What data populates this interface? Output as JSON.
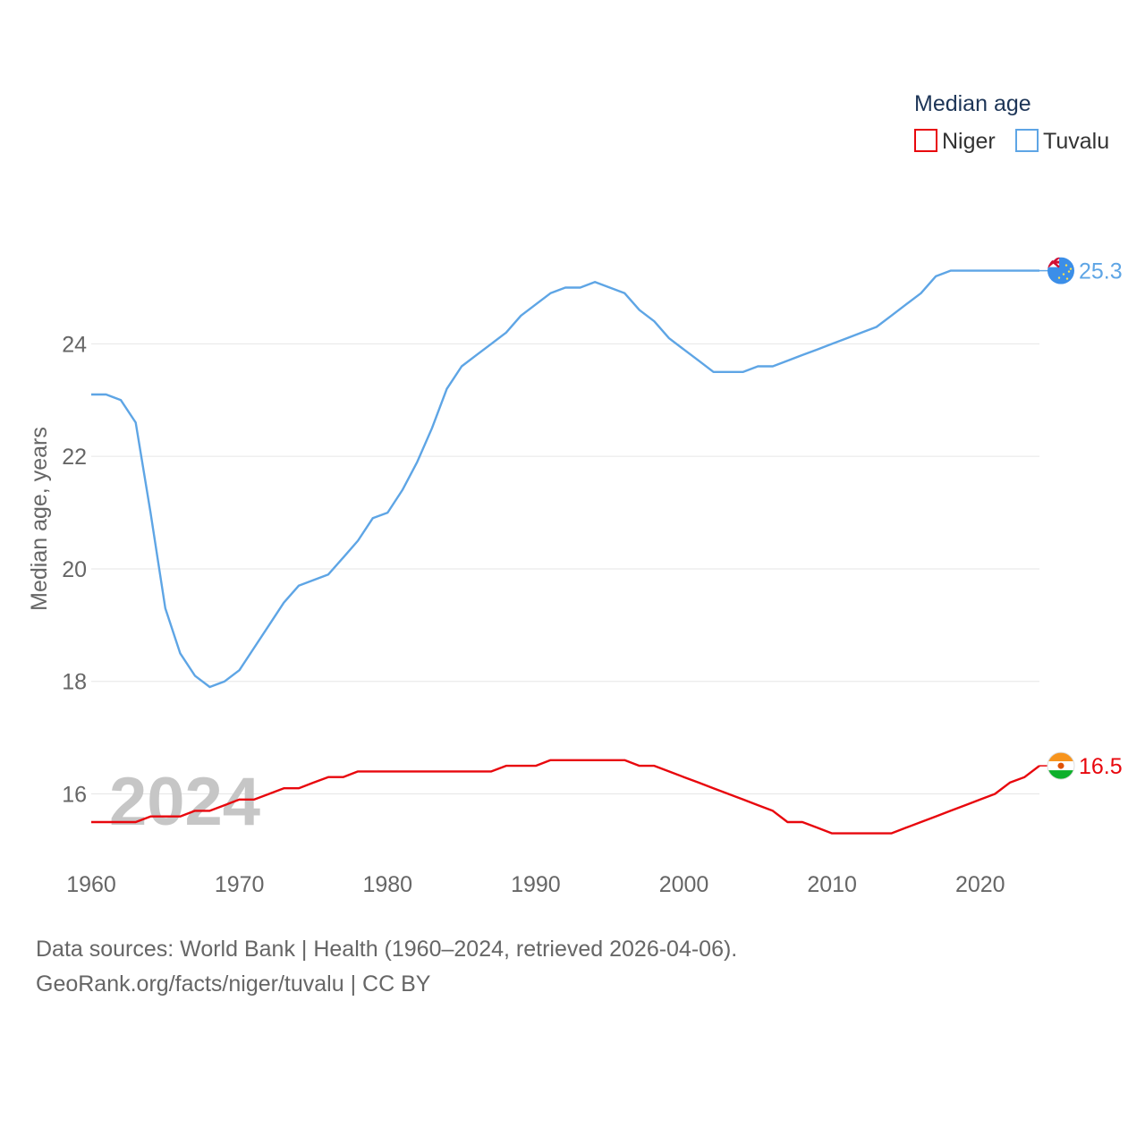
{
  "chart_data": {
    "type": "line",
    "legend_title": "Median age",
    "legend_position": "top-right",
    "ylabel": "Median age, years",
    "xlabel": "",
    "xlim": [
      1960,
      2024
    ],
    "ylim": [
      14.8,
      26.2
    ],
    "xticks": [
      1960,
      1970,
      1980,
      1990,
      2000,
      2010,
      2020
    ],
    "yticks": [
      16,
      18,
      20,
      22,
      24
    ],
    "grid": true,
    "year_label": "2024",
    "x": [
      1960,
      1961,
      1962,
      1963,
      1964,
      1965,
      1966,
      1967,
      1968,
      1969,
      1970,
      1971,
      1972,
      1973,
      1974,
      1975,
      1976,
      1977,
      1978,
      1979,
      1980,
      1981,
      1982,
      1983,
      1984,
      1985,
      1986,
      1987,
      1988,
      1989,
      1990,
      1991,
      1992,
      1993,
      1994,
      1995,
      1996,
      1997,
      1998,
      1999,
      2000,
      2001,
      2002,
      2003,
      2004,
      2005,
      2006,
      2007,
      2008,
      2009,
      2010,
      2011,
      2012,
      2013,
      2014,
      2015,
      2016,
      2017,
      2018,
      2019,
      2020,
      2021,
      2022,
      2023,
      2024
    ],
    "series": [
      {
        "name": "Niger",
        "color": "#e8070d",
        "end_label": "16.5",
        "flag": "niger-flag-icon",
        "values": [
          15.5,
          15.5,
          15.5,
          15.5,
          15.6,
          15.6,
          15.6,
          15.7,
          15.7,
          15.8,
          15.9,
          15.9,
          16.0,
          16.1,
          16.1,
          16.2,
          16.3,
          16.3,
          16.4,
          16.4,
          16.4,
          16.4,
          16.4,
          16.4,
          16.4,
          16.4,
          16.4,
          16.4,
          16.5,
          16.5,
          16.5,
          16.6,
          16.6,
          16.6,
          16.6,
          16.6,
          16.6,
          16.5,
          16.5,
          16.4,
          16.3,
          16.2,
          16.1,
          16.0,
          15.9,
          15.8,
          15.7,
          15.5,
          15.5,
          15.4,
          15.3,
          15.3,
          15.3,
          15.3,
          15.3,
          15.4,
          15.5,
          15.6,
          15.7,
          15.8,
          15.9,
          16.0,
          16.2,
          16.3,
          16.5
        ]
      },
      {
        "name": "Tuvalu",
        "color": "#5ea5e5",
        "end_label": "25.3",
        "flag": "tuvalu-flag-icon",
        "values": [
          23.1,
          23.1,
          23.0,
          22.6,
          21.0,
          19.3,
          18.5,
          18.1,
          17.9,
          18.0,
          18.2,
          18.6,
          19.0,
          19.4,
          19.7,
          19.8,
          19.9,
          20.2,
          20.5,
          20.9,
          21.0,
          21.4,
          21.9,
          22.5,
          23.2,
          23.6,
          23.8,
          24.0,
          24.2,
          24.5,
          24.7,
          24.9,
          25.0,
          25.0,
          25.1,
          25.0,
          24.9,
          24.6,
          24.4,
          24.1,
          23.9,
          23.7,
          23.5,
          23.5,
          23.5,
          23.6,
          23.6,
          23.7,
          23.8,
          23.9,
          24.0,
          24.1,
          24.2,
          24.3,
          24.5,
          24.7,
          24.9,
          25.2,
          25.3,
          25.3,
          25.3,
          25.3,
          25.3,
          25.3,
          25.3
        ]
      }
    ]
  },
  "footer": {
    "sources": "Data sources: World Bank | Health (1960–2024, retrieved 2026-04-06).",
    "attribution": "GeoRank.org/facts/niger/tuvalu | CC BY"
  }
}
